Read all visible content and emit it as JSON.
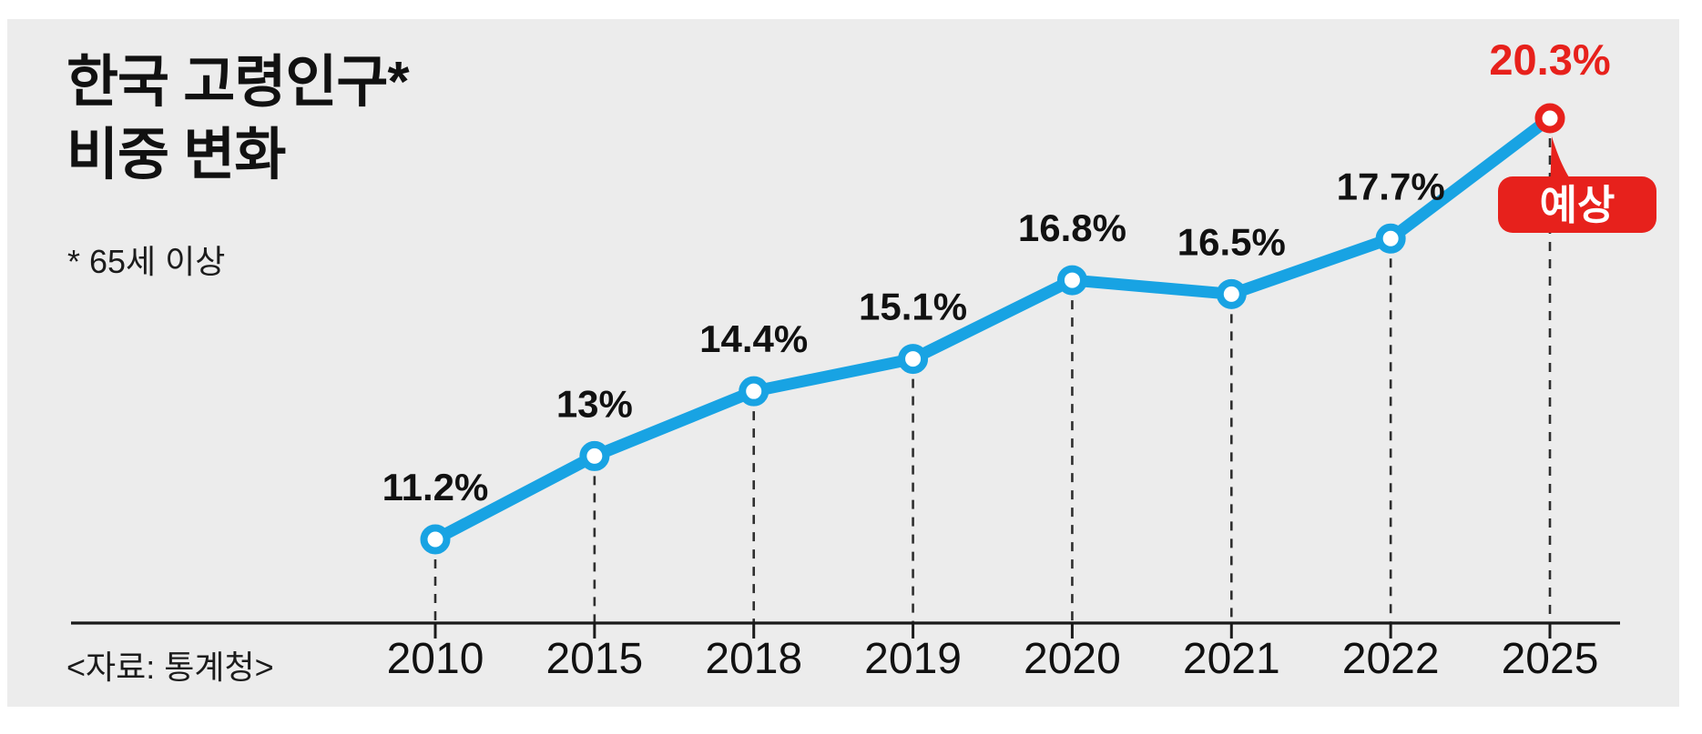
{
  "header": {
    "title_line1": "한국 고령인구*",
    "title_line2": "비중 변화",
    "subtitle": "* 65세 이상"
  },
  "footer": {
    "source": "<자료: 통계청>"
  },
  "chart_data": {
    "type": "line",
    "title": "한국 고령인구* 비중 변화",
    "subtitle_note": "* 65세 이상",
    "source": "<자료: 통계청>",
    "categories": [
      "2010",
      "2015",
      "2018",
      "2019",
      "2020",
      "2021",
      "2022",
      "2025"
    ],
    "values": [
      11.2,
      13,
      14.4,
      15.1,
      16.8,
      16.5,
      17.7,
      20.3
    ],
    "point_labels": [
      "11.2%",
      "13%",
      "14.4%",
      "15.1%",
      "16.8%",
      "16.5%",
      "17.7%",
      "20.3%"
    ],
    "unit": "%",
    "ylim": [
      10,
      21
    ],
    "grid": false,
    "legend": "none",
    "forecast": {
      "index": 7,
      "badge_label": "예상"
    },
    "colors": {
      "line": "#18a3e3",
      "point_fill": "#ffffff",
      "forecast_red": "#e7211c",
      "badge_text": "#ffffff",
      "label_text": "#111111",
      "axis": "#1a1a1a",
      "guide_dash": "#2e2e2e",
      "panel_background": "#ececec"
    }
  }
}
